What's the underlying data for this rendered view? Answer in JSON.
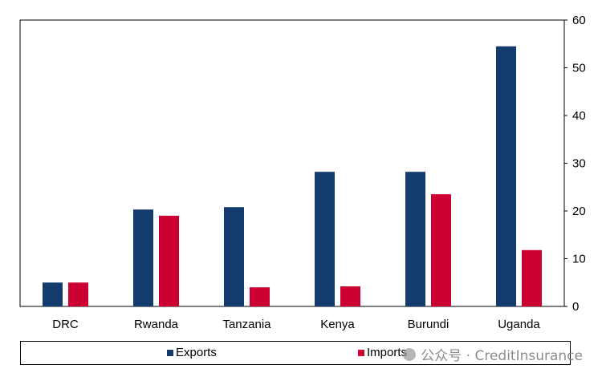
{
  "chart_data": {
    "type": "bar",
    "categories": [
      "DRC",
      "Rwanda",
      "Tanzania",
      "Kenya",
      "Burundi",
      "Uganda"
    ],
    "series": [
      {
        "name": "Exports",
        "values": [
          5,
          20.3,
          20.8,
          28.2,
          28.2,
          54.5
        ],
        "color": "#133b6e"
      },
      {
        "name": "Imports",
        "values": [
          5,
          19,
          4,
          4.2,
          23.5,
          11.8
        ],
        "color": "#cc0033"
      }
    ],
    "ylim": [
      0,
      60
    ],
    "yticks": [
      0,
      10,
      20,
      30,
      40,
      50,
      60
    ],
    "y_axis_side": "right",
    "grid": false,
    "legend_position": "bottom"
  },
  "legend": {
    "items": [
      {
        "label": "Exports",
        "color": "#133b6e"
      },
      {
        "label": "Imports",
        "color": "#cc0033"
      }
    ]
  },
  "watermark": {
    "text": "公众号 · CreditInsurance"
  }
}
